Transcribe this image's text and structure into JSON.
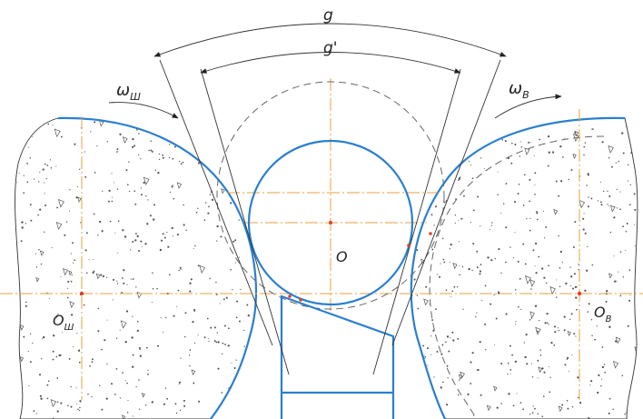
{
  "labels": {
    "g": "g",
    "g_prime": "g'",
    "omega_left": "ω",
    "omega_left_sub": "Ш",
    "omega_right": "ω",
    "omega_right_sub": "В",
    "center": "O",
    "left_center": "O",
    "left_center_sub": "Ш",
    "right_center": "O",
    "right_center_sub": "В"
  },
  "colors": {
    "contour": "#2a7fd0",
    "axis": "#e8a040",
    "stipple": "#555555",
    "marker": "#e0402a"
  },
  "icons": [
    "rotation-arrow-left",
    "rotation-arrow-right"
  ]
}
